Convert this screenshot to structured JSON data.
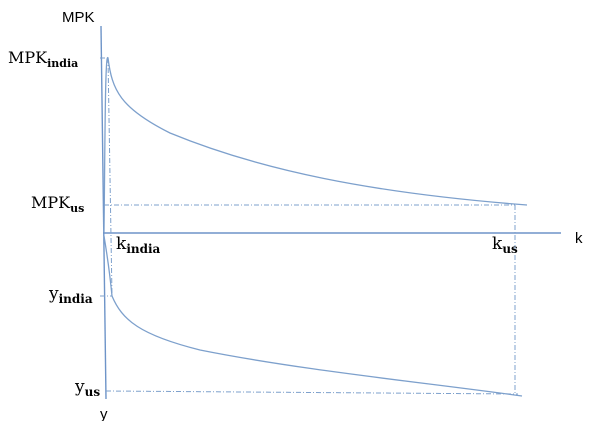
{
  "axes": {
    "top_axis_label": "MPK",
    "right_axis_label": "k",
    "bottom_axis_label": "y"
  },
  "labels": {
    "mpk_india": {
      "base": "MPK",
      "sub": "india"
    },
    "mpk_us": {
      "base": "MPK",
      "sub": "us"
    },
    "k_india": {
      "base": "k",
      "sub": "india"
    },
    "k_us": {
      "base": "k",
      "sub": "us"
    },
    "y_india": {
      "base": "y",
      "sub": "india"
    },
    "y_us": {
      "base": "y",
      "sub": "us"
    }
  },
  "colors": {
    "line": "#7da0cc",
    "text": "#000000",
    "background": "#ffffff"
  }
}
